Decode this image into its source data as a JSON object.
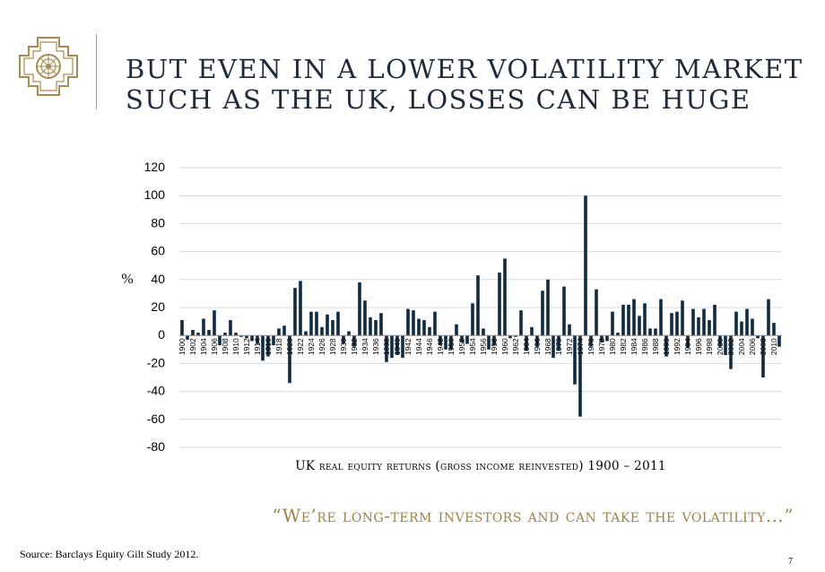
{
  "header": {
    "title_line1": "BUT EVEN IN A LOWER VOLATILITY MARKET",
    "title_line2": "SUCH AS THE UK, LOSSES CAN BE HUGE"
  },
  "chart_data": {
    "type": "bar",
    "title": "UK real equity returns (gross income reinvested) 1900 – 2011",
    "ylabel": "%",
    "xlabel": "",
    "ylim": [
      -80,
      120
    ],
    "yticks": [
      120,
      100,
      80,
      60,
      40,
      20,
      0,
      -20,
      -40,
      -60,
      -80
    ],
    "x_tick_labels": [
      "1900",
      "1902",
      "1904",
      "1906",
      "1908",
      "1910",
      "1912",
      "1914",
      "1916",
      "1918",
      "1920",
      "1922",
      "1924",
      "1926",
      "1928",
      "1930",
      "1932",
      "1934",
      "1936",
      "1938",
      "1940",
      "1942",
      "1944",
      "1946",
      "1948",
      "1950",
      "1952",
      "1954",
      "1956",
      "1958",
      "1960",
      "1962",
      "1964",
      "1966",
      "1968",
      "1970",
      "1972",
      "1974",
      "1976",
      "1978",
      "1980",
      "1982",
      "1984",
      "1986",
      "1988",
      "1990",
      "1992",
      "1994",
      "1996",
      "1998",
      "2000",
      "2002",
      "2004",
      "2006",
      "2008",
      "2010"
    ],
    "grid": true,
    "bar_color": "#0f2a43",
    "categories": [
      1900,
      1901,
      1902,
      1903,
      1904,
      1905,
      1906,
      1907,
      1908,
      1909,
      1910,
      1911,
      1912,
      1913,
      1914,
      1915,
      1916,
      1917,
      1918,
      1919,
      1920,
      1921,
      1922,
      1923,
      1924,
      1925,
      1926,
      1927,
      1928,
      1929,
      1930,
      1931,
      1932,
      1933,
      1934,
      1935,
      1936,
      1937,
      1938,
      1939,
      1940,
      1941,
      1942,
      1943,
      1944,
      1945,
      1946,
      1947,
      1948,
      1949,
      1950,
      1951,
      1952,
      1953,
      1954,
      1955,
      1956,
      1957,
      1958,
      1959,
      1960,
      1961,
      1962,
      1963,
      1964,
      1965,
      1966,
      1967,
      1968,
      1969,
      1970,
      1971,
      1972,
      1973,
      1974,
      1975,
      1976,
      1977,
      1978,
      1979,
      1980,
      1981,
      1982,
      1983,
      1984,
      1985,
      1986,
      1987,
      1988,
      1989,
      1990,
      1991,
      1992,
      1993,
      1994,
      1995,
      1996,
      1997,
      1998,
      1999,
      2000,
      2001,
      2002,
      2003,
      2004,
      2005,
      2006,
      2007,
      2008,
      2009,
      2010,
      2011
    ],
    "values": [
      11,
      -3,
      4,
      2,
      12,
      4,
      18,
      -7,
      2,
      11,
      2,
      -1,
      -2,
      -4,
      -6,
      -18,
      -15,
      -7,
      5,
      7,
      -34,
      34,
      39,
      3,
      17,
      17,
      6,
      15,
      11,
      17,
      -6,
      3,
      -8,
      38,
      25,
      13,
      11,
      16,
      -19,
      -16,
      -14,
      -16,
      19,
      18,
      12,
      11,
      6,
      17,
      -7,
      -10,
      -10,
      8,
      -5,
      -6,
      23,
      43,
      5,
      -10,
      -7,
      45,
      55,
      -2,
      -1,
      18,
      -11,
      6,
      -8,
      32,
      40,
      -16,
      -11,
      35,
      8,
      -35,
      -58,
      100,
      -8,
      33,
      -5,
      -4,
      17,
      2,
      22,
      22,
      26,
      14,
      23,
      5,
      5,
      26,
      -15,
      16,
      17,
      25,
      -9,
      19,
      13,
      19,
      11,
      22,
      -8,
      -14,
      -24,
      17,
      10,
      19,
      12,
      -2,
      -30,
      26,
      9,
      -8
    ]
  },
  "quote": "“We’re long-term investors and can take the volatility…”",
  "footer": {
    "source": "Source: Barclays Equity Gilt Study 2012.",
    "page": "7"
  }
}
